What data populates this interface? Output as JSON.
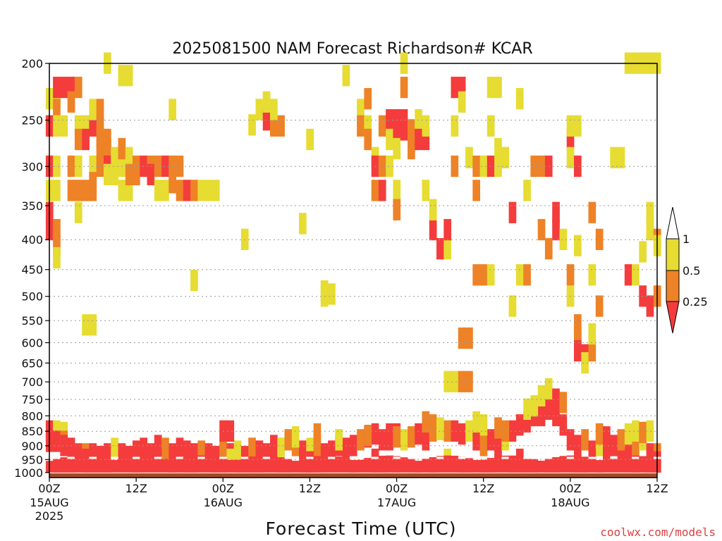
{
  "chart_data": {
    "type": "heatmap",
    "title": "2025081500 NAM Forecast Richardson# KCAR",
    "xlabel": "Forecast Time (UTC)",
    "ylabel": "",
    "y_scale": "pressure (log), inverted",
    "yticks": [
      200,
      250,
      300,
      350,
      400,
      450,
      500,
      550,
      600,
      650,
      700,
      750,
      800,
      850,
      900,
      950,
      1000
    ],
    "ylim": [
      1020,
      200
    ],
    "x_range_hours": [
      0,
      84
    ],
    "xticks": [
      {
        "hour": 0,
        "label": "00Z",
        "sub": "15AUG",
        "sub2": "2025"
      },
      {
        "hour": 12,
        "label": "12Z",
        "sub": "",
        "sub2": ""
      },
      {
        "hour": 24,
        "label": "00Z",
        "sub": "16AUG",
        "sub2": ""
      },
      {
        "hour": 36,
        "label": "12Z",
        "sub": "",
        "sub2": ""
      },
      {
        "hour": 48,
        "label": "00Z",
        "sub": "17AUG",
        "sub2": ""
      },
      {
        "hour": 60,
        "label": "12Z",
        "sub": "",
        "sub2": ""
      },
      {
        "hour": 72,
        "label": "00Z",
        "sub": "18AUG",
        "sub2": ""
      },
      {
        "hour": 84,
        "label": "12Z",
        "sub": "",
        "sub2": ""
      }
    ],
    "colorbar": {
      "bins": [
        {
          "range": "<0.25",
          "color": "#f43c3c"
        },
        {
          "range": "0.25-0.5",
          "color": "#ee8226"
        },
        {
          "range": "0.5-1",
          "color": "#e6dc32"
        },
        {
          "range": ">1",
          "color": "#ffffff"
        }
      ],
      "tick_labels": [
        "1",
        "0.5",
        "0.25"
      ]
    },
    "ground_fill_color": "#9a4e28",
    "grid": "dotted horizontal at pressure ticks",
    "cells": [
      [
        0,
        230,
        2
      ],
      [
        1,
        230,
        2
      ],
      [
        1,
        240,
        1
      ],
      [
        0,
        256,
        0
      ],
      [
        1,
        256,
        2
      ],
      [
        2,
        256,
        2
      ],
      [
        0,
        300,
        0
      ],
      [
        1,
        300,
        2
      ],
      [
        0,
        330,
        2
      ],
      [
        1,
        330,
        2
      ],
      [
        0,
        360,
        0
      ],
      [
        0,
        385,
        0
      ],
      [
        1,
        385,
        1
      ],
      [
        1,
        410,
        1
      ],
      [
        1,
        430,
        2
      ],
      [
        1,
        220,
        0
      ],
      [
        2,
        220,
        0
      ],
      [
        3,
        220,
        0
      ],
      [
        3,
        233,
        1
      ],
      [
        4,
        220,
        1
      ],
      [
        4,
        256,
        2
      ],
      [
        4,
        270,
        1
      ],
      [
        5,
        256,
        2
      ],
      [
        5,
        270,
        0
      ],
      [
        6,
        256,
        0
      ],
      [
        6,
        240,
        2
      ],
      [
        7,
        240,
        1
      ],
      [
        7,
        256,
        1
      ],
      [
        7,
        270,
        1
      ],
      [
        8,
        270,
        1
      ],
      [
        3,
        300,
        1
      ],
      [
        3,
        330,
        1
      ],
      [
        4,
        330,
        1
      ],
      [
        5,
        330,
        1
      ],
      [
        6,
        330,
        1
      ],
      [
        4,
        300,
        2
      ],
      [
        6,
        300,
        2
      ],
      [
        6,
        320,
        1
      ],
      [
        4,
        360,
        2
      ],
      [
        7,
        280,
        1
      ],
      [
        7,
        300,
        1
      ],
      [
        8,
        280,
        1
      ],
      [
        8,
        300,
        0
      ],
      [
        8,
        310,
        2
      ],
      [
        9,
        290,
        2
      ],
      [
        9,
        310,
        2
      ],
      [
        10,
        300,
        2
      ],
      [
        10,
        330,
        2
      ],
      [
        11,
        330,
        2
      ],
      [
        10,
        280,
        1
      ],
      [
        11,
        290,
        2
      ],
      [
        11,
        310,
        1
      ],
      [
        12,
        300,
        1
      ],
      [
        12,
        310,
        1
      ],
      [
        13,
        300,
        0
      ],
      [
        14,
        300,
        1
      ],
      [
        14,
        310,
        0
      ],
      [
        15,
        300,
        1
      ],
      [
        15,
        330,
        2
      ],
      [
        16,
        300,
        0
      ],
      [
        16,
        330,
        2
      ],
      [
        17,
        300,
        1
      ],
      [
        17,
        320,
        1
      ],
      [
        18,
        300,
        1
      ],
      [
        18,
        330,
        1
      ],
      [
        19,
        330,
        0
      ],
      [
        20,
        330,
        1
      ],
      [
        21,
        330,
        2
      ],
      [
        22,
        330,
        2
      ],
      [
        23,
        330,
        2
      ],
      [
        8,
        200,
        2
      ],
      [
        10,
        210,
        2
      ],
      [
        11,
        210,
        2
      ],
      [
        17,
        240,
        2
      ],
      [
        5,
        560,
        2
      ],
      [
        6,
        560,
        2
      ],
      [
        20,
        470,
        2
      ],
      [
        27,
        400,
        2
      ],
      [
        28,
        255,
        2
      ],
      [
        29,
        240,
        2
      ],
      [
        30,
        250,
        0
      ],
      [
        30,
        233,
        2
      ],
      [
        31,
        256,
        1
      ],
      [
        32,
        256,
        1
      ],
      [
        31,
        240,
        2
      ],
      [
        35,
        376,
        2
      ],
      [
        36,
        270,
        2
      ],
      [
        38,
        500,
        2
      ],
      [
        38,
        490,
        2
      ],
      [
        39,
        496,
        2
      ],
      [
        41,
        210,
        2
      ],
      [
        43,
        240,
        2
      ],
      [
        43,
        256,
        1
      ],
      [
        44,
        230,
        1
      ],
      [
        44,
        256,
        2
      ],
      [
        44,
        270,
        1
      ],
      [
        45,
        290,
        2
      ],
      [
        45,
        300,
        0
      ],
      [
        45,
        330,
        1
      ],
      [
        46,
        256,
        1
      ],
      [
        46,
        300,
        1
      ],
      [
        46,
        330,
        0
      ],
      [
        47,
        250,
        0
      ],
      [
        47,
        270,
        2
      ],
      [
        47,
        300,
        2
      ],
      [
        48,
        250,
        0
      ],
      [
        48,
        260,
        0
      ],
      [
        48,
        280,
        2
      ],
      [
        48,
        330,
        2
      ],
      [
        48,
        356,
        1
      ],
      [
        49,
        250,
        0
      ],
      [
        49,
        260,
        0
      ],
      [
        49,
        200,
        2
      ],
      [
        49,
        220,
        1
      ],
      [
        50,
        260,
        1
      ],
      [
        50,
        280,
        1
      ],
      [
        51,
        250,
        2
      ],
      [
        51,
        270,
        0
      ],
      [
        52,
        270,
        0
      ],
      [
        52,
        256,
        2
      ],
      [
        52,
        330,
        2
      ],
      [
        53,
        385,
        0
      ],
      [
        53,
        356,
        2
      ],
      [
        54,
        415,
        0
      ],
      [
        55,
        415,
        2
      ],
      [
        55,
        385,
        0
      ],
      [
        56,
        300,
        1
      ],
      [
        56,
        256,
        2
      ],
      [
        58,
        290,
        2
      ],
      [
        57,
        590,
        1
      ],
      [
        58,
        590,
        1
      ],
      [
        55,
        700,
        2
      ],
      [
        56,
        700,
        2
      ],
      [
        57,
        700,
        1
      ],
      [
        58,
        700,
        1
      ],
      [
        56,
        220,
        0
      ],
      [
        57,
        220,
        0
      ],
      [
        57,
        233,
        2
      ],
      [
        59,
        300,
        1
      ],
      [
        59,
        330,
        1
      ],
      [
        60,
        300,
        2
      ],
      [
        61,
        300,
        0
      ],
      [
        61,
        256,
        2
      ],
      [
        62,
        300,
        2
      ],
      [
        61,
        220,
        2
      ],
      [
        62,
        220,
        2
      ],
      [
        62,
        280,
        2
      ],
      [
        63,
        290,
        2
      ],
      [
        59,
        460,
        1
      ],
      [
        60,
        460,
        1
      ],
      [
        61,
        460,
        2
      ],
      [
        64,
        360,
        0
      ],
      [
        65,
        230,
        2
      ],
      [
        65,
        460,
        2
      ],
      [
        66,
        460,
        1
      ],
      [
        66,
        330,
        2
      ],
      [
        64,
        520,
        2
      ],
      [
        67,
        300,
        1
      ],
      [
        68,
        300,
        1
      ],
      [
        69,
        300,
        0
      ],
      [
        68,
        385,
        1
      ],
      [
        69,
        415,
        1
      ],
      [
        70,
        360,
        0
      ],
      [
        70,
        385,
        0
      ],
      [
        71,
        400,
        2
      ],
      [
        72,
        270,
        0
      ],
      [
        72,
        256,
        2
      ],
      [
        72,
        290,
        2
      ],
      [
        73,
        256,
        2
      ],
      [
        73,
        300,
        0
      ],
      [
        72,
        460,
        1
      ],
      [
        72,
        500,
        2
      ],
      [
        73,
        560,
        1
      ],
      [
        73,
        600,
        1
      ],
      [
        73,
        620,
        0
      ],
      [
        74,
        630,
        0
      ],
      [
        74,
        650,
        2
      ],
      [
        75,
        620,
        1
      ],
      [
        75,
        580,
        2
      ],
      [
        73,
        410,
        2
      ],
      [
        75,
        360,
        1
      ],
      [
        75,
        460,
        2
      ],
      [
        76,
        520,
        1
      ],
      [
        76,
        400,
        1
      ],
      [
        78,
        290,
        2
      ],
      [
        79,
        290,
        2
      ],
      [
        80,
        460,
        0
      ],
      [
        81,
        460,
        2
      ],
      [
        82,
        500,
        0
      ],
      [
        83,
        385,
        2
      ],
      [
        83,
        520,
        0
      ],
      [
        84,
        400,
        1
      ],
      [
        84,
        500,
        1
      ],
      [
        84,
        410,
        2
      ],
      [
        83,
        360,
        2
      ],
      [
        82,
        420,
        2
      ],
      [
        80,
        200,
        2
      ],
      [
        81,
        200,
        2
      ],
      [
        82,
        200,
        2
      ],
      [
        83,
        200,
        2
      ],
      [
        84,
        200,
        2
      ],
      [
        0,
        850,
        0
      ],
      [
        1,
        850,
        2
      ],
      [
        2,
        855,
        2
      ],
      [
        0,
        885,
        0
      ],
      [
        1,
        885,
        0
      ],
      [
        2,
        885,
        1
      ],
      [
        2,
        900,
        0
      ],
      [
        3,
        910,
        0
      ],
      [
        4,
        930,
        0
      ],
      [
        5,
        930,
        1
      ],
      [
        6,
        930,
        0
      ],
      [
        7,
        940,
        0
      ],
      [
        8,
        930,
        0
      ],
      [
        9,
        910,
        2
      ],
      [
        10,
        930,
        0
      ],
      [
        11,
        940,
        0
      ],
      [
        12,
        920,
        0
      ],
      [
        13,
        910,
        0
      ],
      [
        14,
        930,
        0
      ],
      [
        15,
        900,
        0
      ],
      [
        16,
        910,
        1
      ],
      [
        17,
        930,
        0
      ],
      [
        18,
        910,
        0
      ],
      [
        19,
        920,
        0
      ],
      [
        20,
        930,
        0
      ],
      [
        21,
        920,
        1
      ],
      [
        22,
        930,
        0
      ],
      [
        23,
        940,
        0
      ],
      [
        24,
        920,
        1
      ],
      [
        25,
        930,
        0
      ],
      [
        26,
        920,
        2
      ],
      [
        27,
        940,
        0
      ],
      [
        28,
        910,
        1
      ],
      [
        29,
        920,
        0
      ],
      [
        30,
        930,
        0
      ],
      [
        31,
        900,
        0
      ],
      [
        32,
        910,
        2
      ],
      [
        33,
        880,
        1
      ],
      [
        34,
        900,
        1
      ],
      [
        35,
        920,
        0
      ],
      [
        36,
        910,
        2
      ],
      [
        37,
        900,
        1
      ],
      [
        38,
        930,
        0
      ],
      [
        39,
        920,
        0
      ],
      [
        40,
        900,
        0
      ],
      [
        41,
        910,
        0
      ],
      [
        42,
        900,
        0
      ],
      [
        43,
        880,
        1
      ],
      [
        44,
        870,
        0
      ],
      [
        45,
        860,
        0
      ],
      [
        46,
        880,
        0
      ],
      [
        47,
        860,
        0
      ],
      [
        48,
        860,
        0
      ],
      [
        49,
        880,
        2
      ],
      [
        50,
        870,
        1
      ],
      [
        51,
        860,
        0
      ],
      [
        52,
        880,
        0
      ],
      [
        53,
        850,
        1
      ],
      [
        54,
        845,
        2
      ],
      [
        55,
        850,
        1
      ],
      [
        56,
        850,
        0
      ],
      [
        57,
        860,
        0
      ],
      [
        58,
        850,
        2
      ],
      [
        59,
        880,
        0
      ],
      [
        60,
        900,
        1
      ],
      [
        61,
        880,
        0
      ],
      [
        62,
        910,
        0
      ],
      [
        63,
        880,
        2
      ],
      [
        64,
        850,
        0
      ],
      [
        65,
        830,
        0
      ],
      [
        66,
        820,
        0
      ],
      [
        67,
        800,
        0
      ],
      [
        68,
        800,
        0
      ],
      [
        69,
        780,
        0
      ],
      [
        70,
        800,
        0
      ],
      [
        71,
        830,
        0
      ],
      [
        72,
        880,
        0
      ],
      [
        73,
        900,
        0
      ],
      [
        74,
        880,
        1
      ],
      [
        75,
        920,
        0
      ],
      [
        76,
        900,
        2
      ],
      [
        77,
        920,
        0
      ],
      [
        78,
        900,
        0
      ],
      [
        79,
        940,
        0
      ],
      [
        80,
        920,
        0
      ],
      [
        81,
        900,
        1
      ],
      [
        82,
        880,
        2
      ],
      [
        83,
        930,
        0
      ],
      [
        84,
        930,
        1
      ],
      [
        66,
        780,
        2
      ],
      [
        67,
        770,
        2
      ],
      [
        68,
        740,
        2
      ],
      [
        69,
        720,
        2
      ],
      [
        70,
        750,
        0
      ],
      [
        71,
        760,
        1
      ],
      [
        59,
        820,
        2
      ],
      [
        60,
        830,
        2
      ],
      [
        52,
        820,
        1
      ],
      [
        53,
        830,
        1
      ],
      [
        54,
        840,
        2
      ],
      [
        24,
        850,
        0
      ],
      [
        25,
        850,
        0
      ],
      [
        34,
        870,
        2
      ],
      [
        37,
        860,
        1
      ],
      [
        40,
        880,
        2
      ],
      [
        44,
        865,
        1
      ],
      [
        47,
        880,
        0
      ],
      [
        48,
        870,
        1
      ],
      [
        62,
        840,
        1
      ],
      [
        63,
        850,
        1
      ],
      [
        76,
        860,
        1
      ],
      [
        77,
        870,
        0
      ],
      [
        79,
        880,
        1
      ],
      [
        80,
        860,
        2
      ],
      [
        81,
        850,
        2
      ],
      [
        82,
        855,
        1
      ],
      [
        83,
        850,
        2
      ],
      [
        5,
        950,
        0
      ],
      [
        15,
        950,
        0
      ],
      [
        25,
        950,
        2
      ],
      [
        36,
        960,
        0
      ],
      [
        45,
        950,
        0
      ],
      [
        55,
        950,
        2
      ],
      [
        65,
        950,
        0
      ],
      [
        75,
        950,
        0
      ],
      [
        84,
        960,
        0
      ]
    ]
  },
  "footer": {
    "credit": "coolwx.com/models"
  }
}
